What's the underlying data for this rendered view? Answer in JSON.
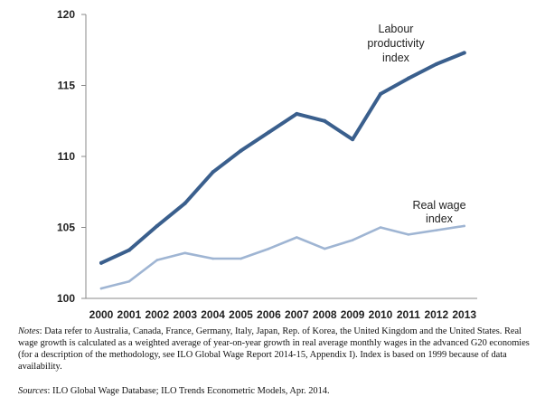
{
  "chart_data": {
    "type": "line",
    "x": [
      2000,
      2001,
      2002,
      2003,
      2004,
      2005,
      2006,
      2007,
      2008,
      2009,
      2010,
      2011,
      2012,
      2013
    ],
    "series": [
      {
        "name": "Labour productivity index",
        "label_lines": [
          "Labour",
          "productivity",
          "index"
        ],
        "color": "#3a5f8d",
        "values": [
          102.5,
          103.4,
          105.1,
          106.7,
          108.9,
          110.4,
          111.7,
          113.0,
          112.5,
          111.2,
          114.4,
          115.5,
          116.5,
          117.3
        ]
      },
      {
        "name": "Real wage index",
        "label_lines": [
          "Real wage",
          "index"
        ],
        "color": "#9fb5d3",
        "values": [
          100.7,
          101.2,
          102.7,
          103.2,
          102.8,
          102.8,
          103.5,
          104.3,
          103.5,
          104.1,
          105.0,
          104.5,
          104.8,
          105.1
        ]
      }
    ],
    "title": "",
    "xlabel": "",
    "ylabel": "",
    "ylim": [
      100,
      120
    ],
    "yticks": [
      100,
      105,
      110,
      115,
      120
    ],
    "grid": false,
    "legend": "inline labels"
  },
  "notes": {
    "lead": "Notes",
    "text": ": Data refer to Australia, Canada, France, Germany, Italy, Japan, Rep. of Korea, the United Kingdom and the United States. Real wage growth is calculated as a weighted average of year-on-year growth in real average monthly wages in the advanced G20 economies (for a description of the methodology, see ILO Global Wage Report 2014-15, Appendix I). Index is based on 1999 because of data availability."
  },
  "sources": {
    "lead": "Sources",
    "text": ": ILO Global Wage Database; ILO Trends Econometric Models, Apr. 2014."
  }
}
